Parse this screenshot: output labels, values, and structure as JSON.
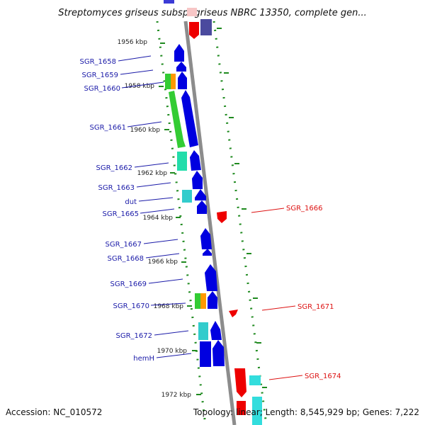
{
  "header": {
    "title": "Streptomyces griseus subsp. griseus NBRC 13350, complete gen..."
  },
  "footer": {
    "accession": "Accession: NC_010572",
    "summary": "Topology: linear; Length: 8,545,929 bp; Genes: 7,222"
  },
  "scale": {
    "ticks": [
      "1956 kbp",
      "1958 kbp",
      "1960 kbp",
      "1962 kbp",
      "1964 kbp",
      "1966 kbp",
      "1968 kbp",
      "1970 kbp",
      "1972 kbp"
    ]
  },
  "genes": {
    "left": [
      "SGR_1658",
      "SGR_1659",
      "SGR_1660",
      "SGR_1661",
      "SGR_1662",
      "SGR_1663",
      "dut",
      "SGR_1665",
      "SGR_1667",
      "SGR_1668",
      "SGR_1669",
      "SGR_1670",
      "SGR_1672",
      "hemH"
    ],
    "right": [
      "SGR_1666",
      "SGR_1671",
      "SGR_1674"
    ]
  },
  "colors": {
    "axis": "#8c8c8c",
    "tick": "#1f8a1f",
    "blue": "#0000e0",
    "green": "#33cc33",
    "orange": "#ff9900",
    "cyan": "#33cccc",
    "teal": "#22ddaa",
    "red": "#ee0000",
    "label_left": "#1a1aa8",
    "label_right": "#dd1111"
  }
}
